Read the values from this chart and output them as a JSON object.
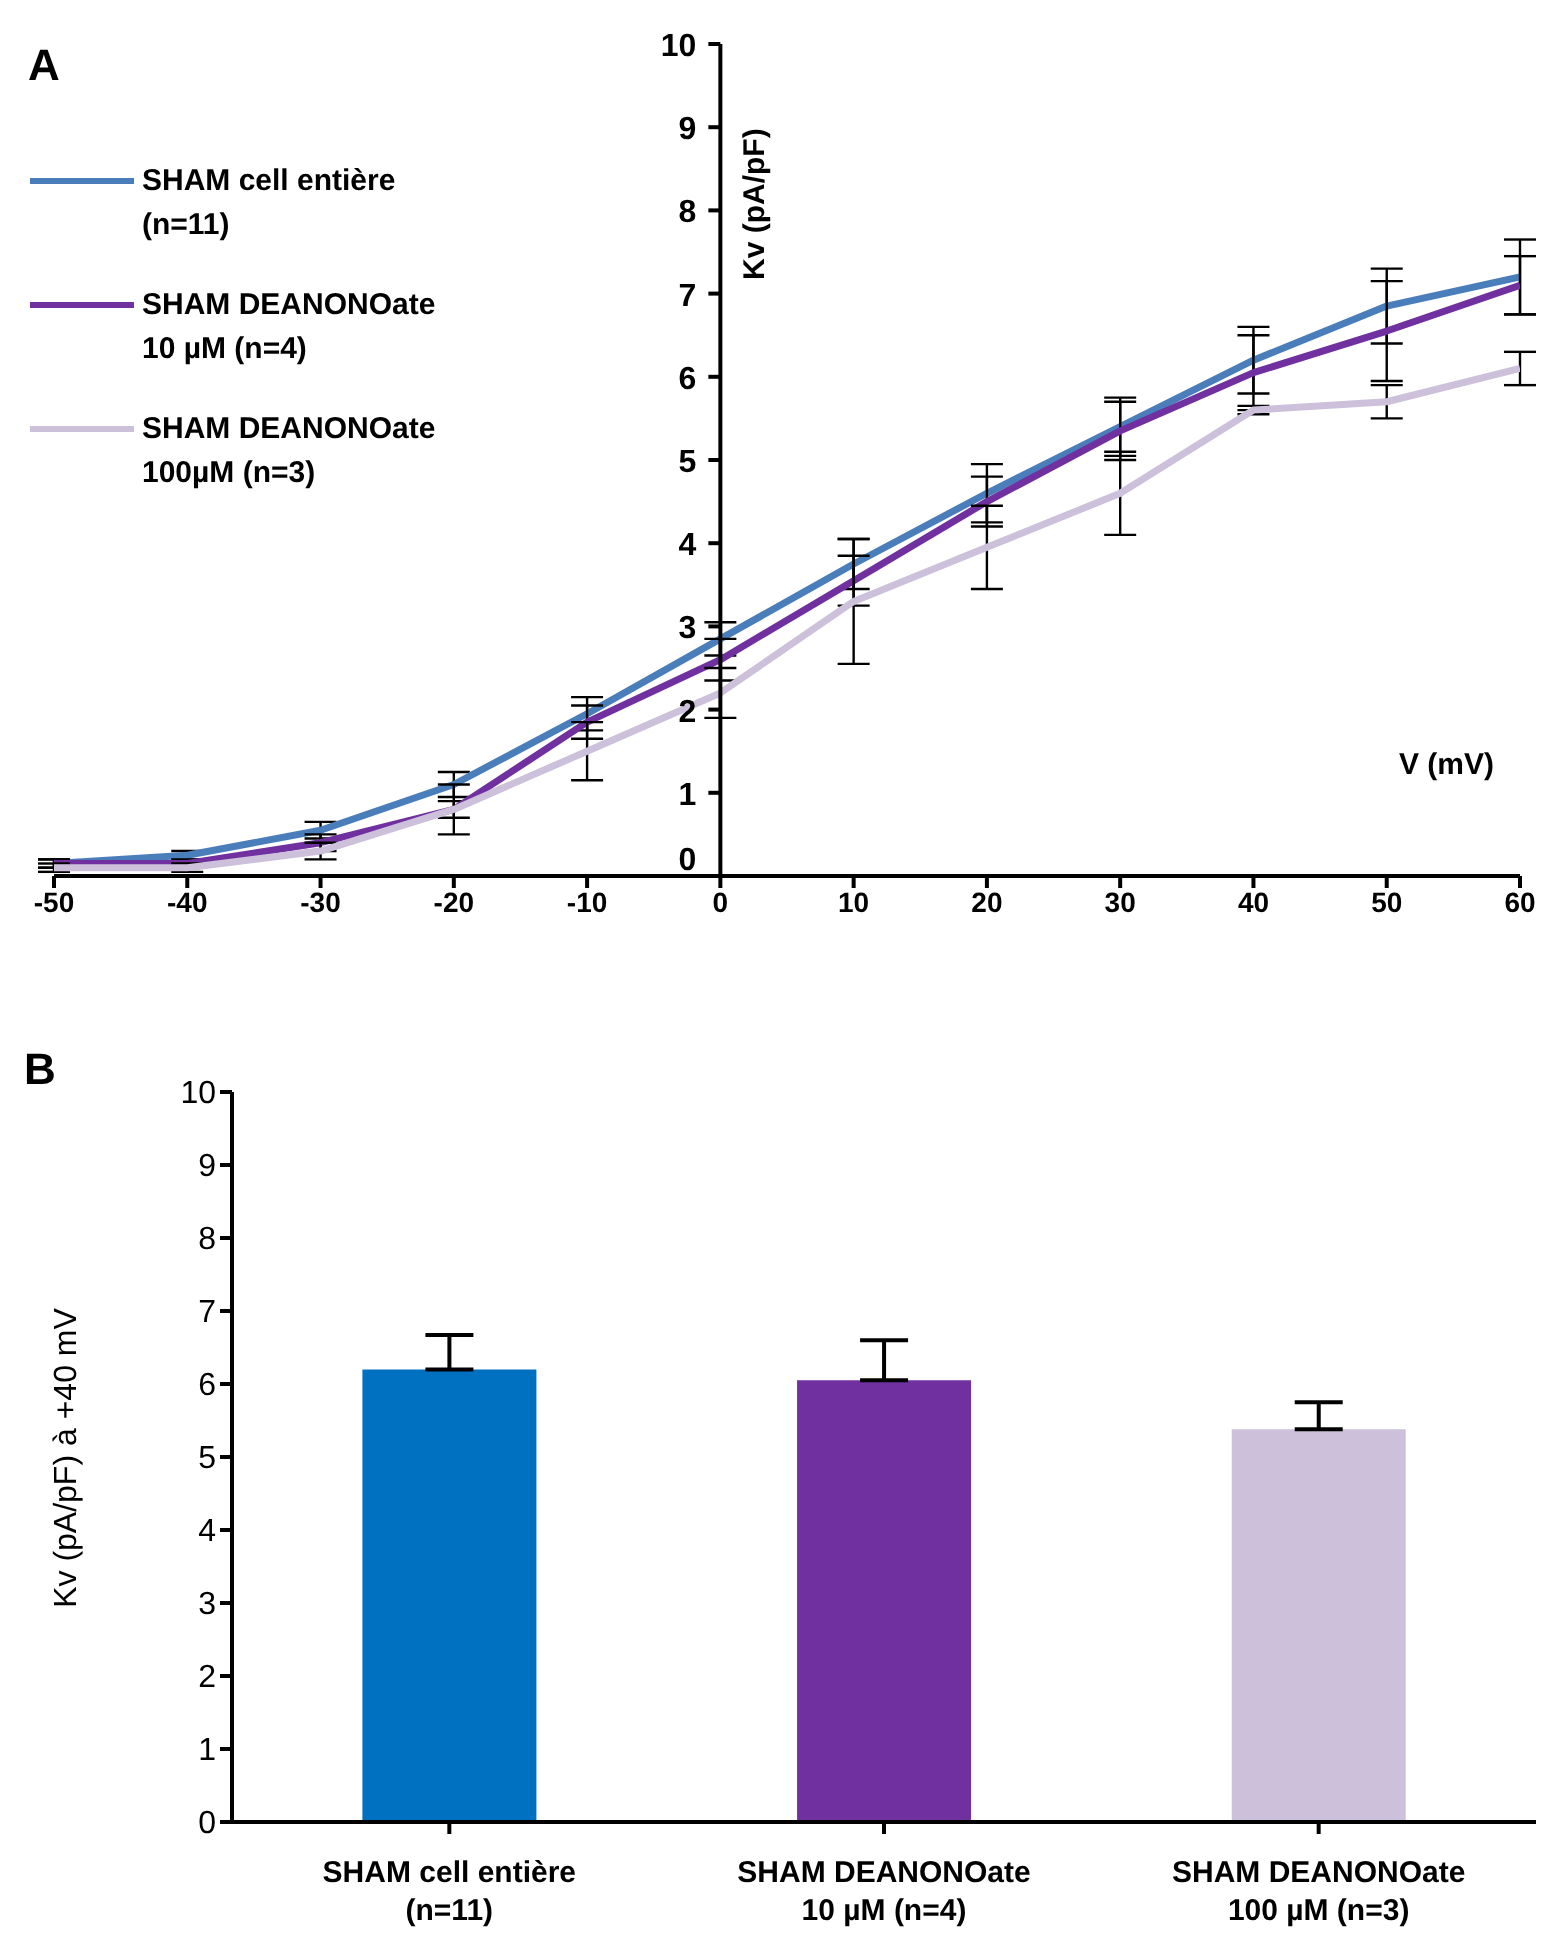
{
  "chart_data": [
    {
      "type": "line",
      "title": "A",
      "xlabel": "V (mV)",
      "ylabel": "Kv (pA/pF)",
      "x": [
        -50,
        -40,
        -30,
        -20,
        -10,
        0,
        10,
        20,
        30,
        40,
        50,
        60
      ],
      "xlim": [
        -50,
        60
      ],
      "xticks": [
        -50,
        -40,
        -30,
        -20,
        -10,
        0,
        10,
        20,
        30,
        40,
        50,
        60
      ],
      "ylim": [
        0,
        10
      ],
      "yticks": [
        0,
        1,
        2,
        3,
        4,
        5,
        6,
        7,
        8,
        9,
        10
      ],
      "grid": false,
      "legend": "top left",
      "marker": "none",
      "line_style": "solid",
      "series": [
        {
          "name": "SHAM cell entière\n(n=11)",
          "color": "#4a7ebb",
          "values": [
            0.15,
            0.25,
            0.55,
            1.1,
            1.95,
            2.85,
            3.75,
            4.6,
            5.4,
            6.2,
            6.85,
            7.2
          ],
          "errors": [
            0.05,
            0.05,
            0.1,
            0.15,
            0.2,
            0.2,
            0.3,
            0.35,
            0.35,
            0.4,
            0.45,
            0.45
          ]
        },
        {
          "name": "SHAM DEANONOate\n10 µM (n=4)",
          "color": "#7030a0",
          "values": [
            0.15,
            0.15,
            0.4,
            0.8,
            1.85,
            2.6,
            3.55,
            4.5,
            5.35,
            6.05,
            6.55,
            7.1
          ],
          "errors": [
            0.05,
            0.05,
            0.1,
            0.1,
            0.2,
            0.25,
            0.3,
            0.3,
            0.35,
            0.45,
            0.6,
            0.35
          ]
        },
        {
          "name": "SHAM DEANONOate\n100µM (n=3)",
          "color": "#ccc0da",
          "values": [
            0.1,
            0.1,
            0.3,
            0.8,
            1.5,
            2.2,
            3.3,
            3.95,
            4.6,
            5.6,
            5.7,
            6.1
          ],
          "errors": [
            0.05,
            0.05,
            0.1,
            0.3,
            0.35,
            0.3,
            0.75,
            0.5,
            0.5,
            0.05,
            0.2,
            0.2
          ]
        }
      ]
    },
    {
      "type": "bar",
      "title": "B",
      "ylabel": "Kv (pA/pF) à +40 mV",
      "categories": [
        "SHAM cell entière\n(n=11)",
        "SHAM DEANONOate\n10 µM (n=4)",
        "SHAM DEANONOate\n100 µM (n=3)"
      ],
      "values": [
        6.2,
        6.05,
        5.38
      ],
      "colors": [
        "#0070c0",
        "#7030a0",
        "#ccc0da"
      ],
      "errors": [
        [
          6.2,
          6.67
        ],
        [
          6.05,
          6.6
        ],
        [
          5.38,
          5.75
        ]
      ],
      "ylim": [
        0,
        10
      ],
      "yticks": [
        0,
        1,
        2,
        3,
        4,
        5,
        6,
        7,
        8,
        9,
        10
      ],
      "grid": false
    }
  ]
}
